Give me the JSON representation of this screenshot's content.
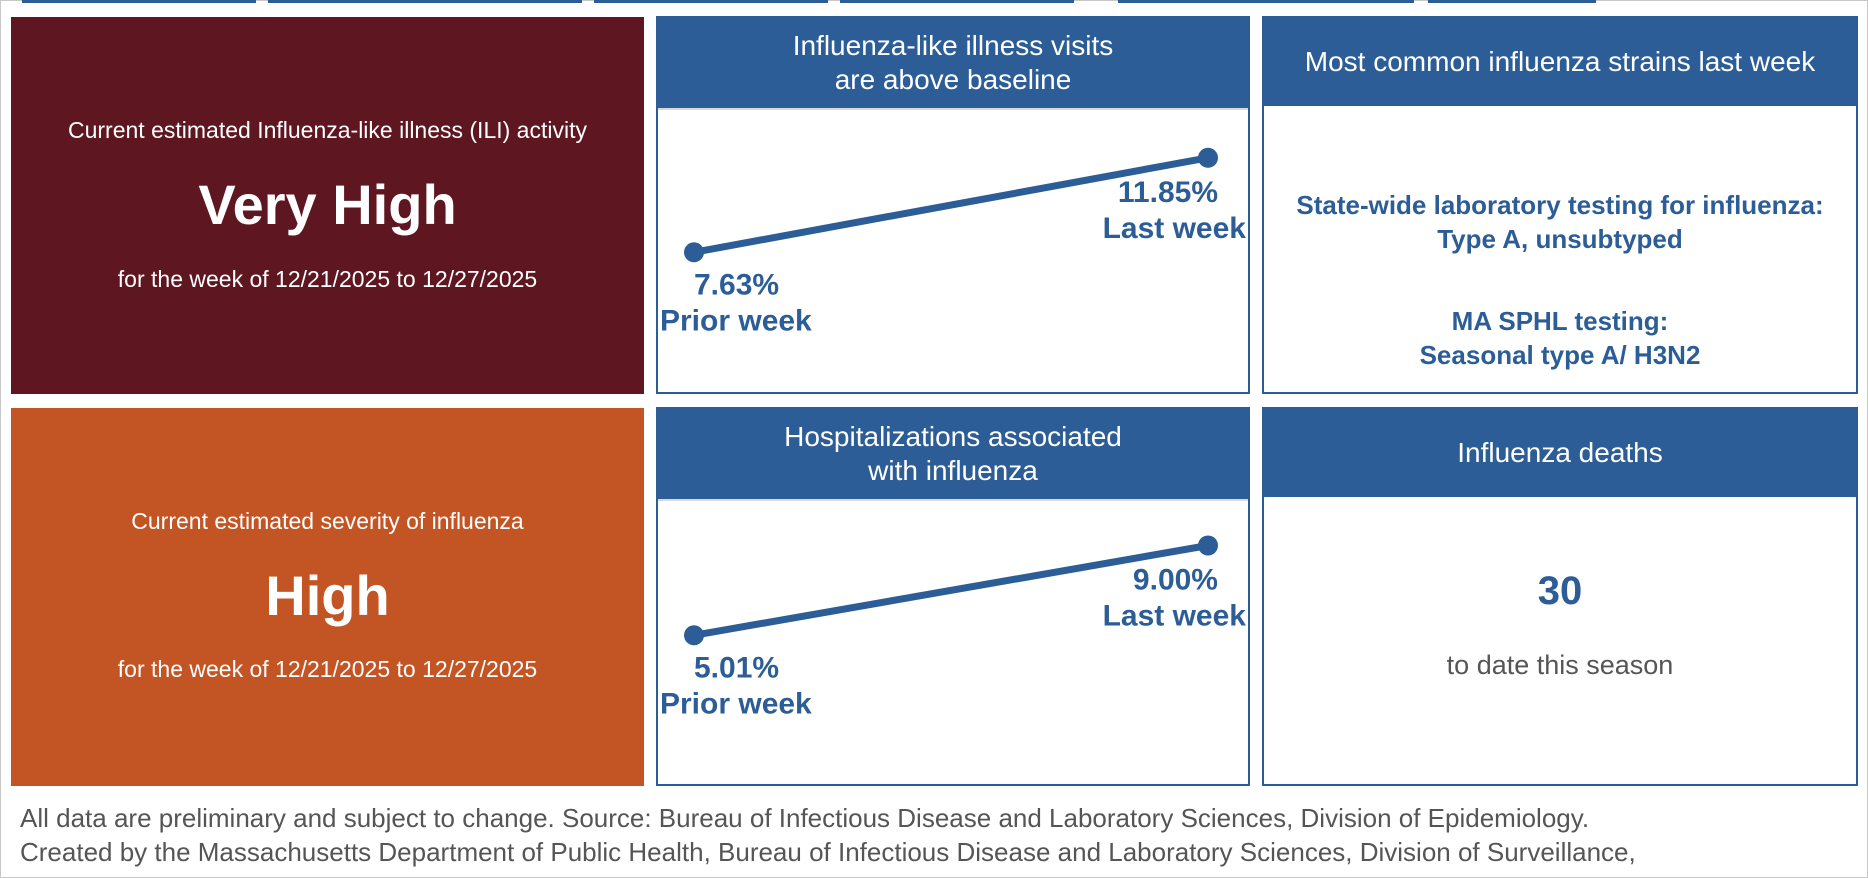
{
  "colors": {
    "very_high": "#5e1620",
    "high": "#c35524",
    "panel_blue": "#2c5d96"
  },
  "ili_activity": {
    "label": "Current estimated Influenza-like illness (ILI) activity",
    "level": "Very High",
    "period": "for the week of 12/21/2025 to 12/27/2025"
  },
  "severity": {
    "label": "Current estimated severity of influenza",
    "level": "High",
    "period": "for the week of 12/21/2025 to 12/27/2025"
  },
  "ili_visits": {
    "title_line1": "Influenza-like illness visits",
    "title_line2": "are above baseline"
  },
  "hospitalizations": {
    "title_line1": "Hospitalizations associated",
    "title_line2": "with influenza"
  },
  "strains": {
    "title": "Most common influenza strains last week",
    "statewide_line1": "State-wide laboratory testing for influenza:",
    "statewide_line2": "Type A, unsubtyped",
    "sphl_line1": "MA SPHL testing:",
    "sphl_line2": "Seasonal type A/ H3N2"
  },
  "deaths": {
    "title": "Influenza deaths",
    "count": "30",
    "note": "to date this season"
  },
  "footer": {
    "line1": "All data are preliminary and subject to change. Source: Bureau of Infectious Disease and Laboratory Sciences, Division of Epidemiology.",
    "line2": "Created by the Massachusetts Department of Public Health, Bureau of Infectious Disease and Laboratory Sciences, Division of Surveillance,"
  },
  "chart_data": [
    {
      "type": "line",
      "categories": [
        "Prior week",
        "Last week"
      ],
      "values": [
        7.63,
        11.85
      ],
      "value_labels": [
        "7.63%",
        "11.85%"
      ],
      "ylim": [
        3,
        13
      ]
    },
    {
      "type": "line",
      "categories": [
        "Prior week",
        "Last week"
      ],
      "values": [
        5.01,
        9.0
      ],
      "value_labels": [
        "5.01%",
        "9.00%"
      ],
      "ylim": [
        0,
        10
      ]
    }
  ]
}
